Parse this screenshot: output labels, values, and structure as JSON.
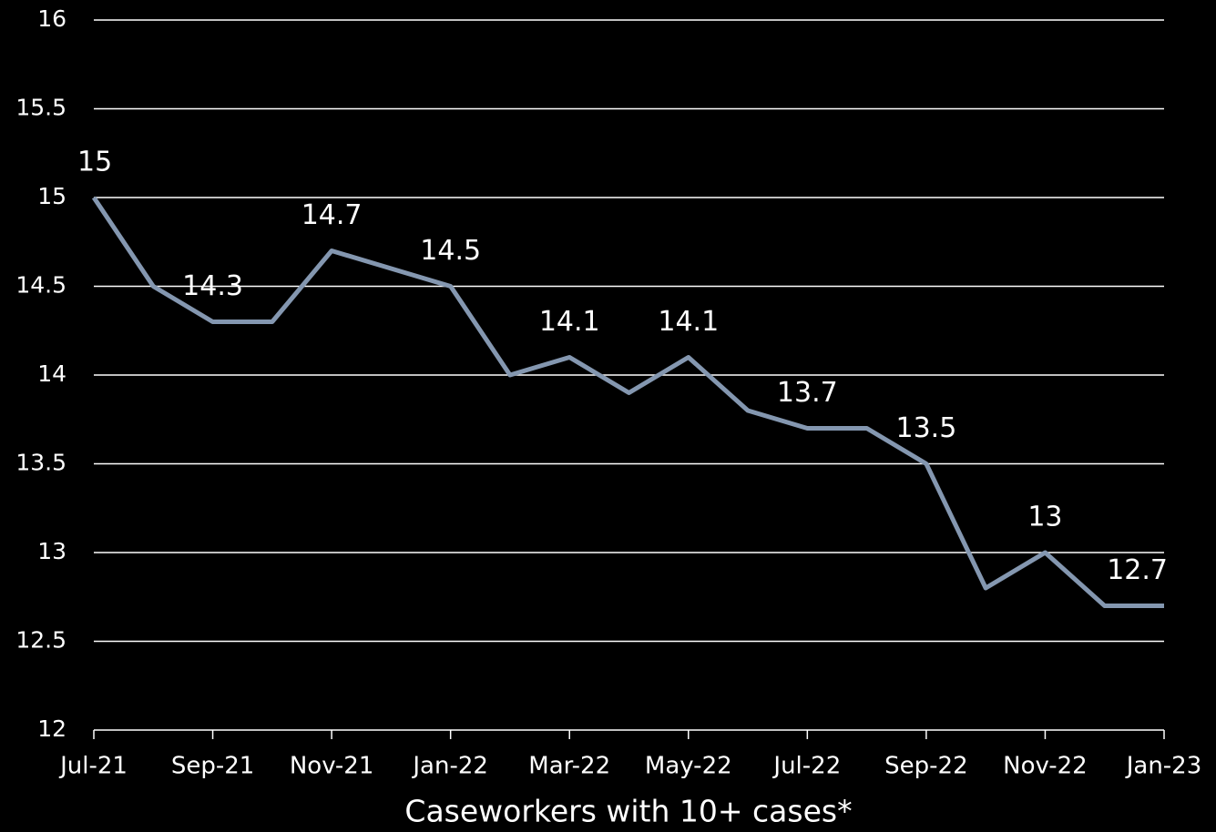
{
  "chart_data": {
    "type": "line",
    "x_label": "Caseworkers with 10+ cases*",
    "categories": [
      "Jul-21",
      null,
      "Sep-21",
      null,
      "Nov-21",
      null,
      "Jan-22",
      null,
      "Mar-22",
      null,
      "May-22",
      null,
      "Jul-22",
      null,
      "Sep-22",
      null,
      "Nov-22",
      null,
      "Jan-23"
    ],
    "values": [
      15,
      14.5,
      14.3,
      14.3,
      14.7,
      14.6,
      14.5,
      14.0,
      14.1,
      13.9,
      14.1,
      13.8,
      13.7,
      13.7,
      13.5,
      12.8,
      13.0,
      12.7,
      12.7
    ],
    "value_labels": [
      "15",
      null,
      "14.3",
      null,
      "14.7",
      null,
      "14.5",
      null,
      "14.1",
      null,
      "14.1",
      null,
      "13.7",
      null,
      "13.5",
      null,
      "13",
      null,
      "12.7"
    ],
    "color": "#8497b0",
    "ylim": [
      12,
      16
    ],
    "yticks": [
      12,
      12.5,
      13,
      13.5,
      14,
      14.5,
      15,
      15.5,
      16
    ],
    "grid": true
  }
}
